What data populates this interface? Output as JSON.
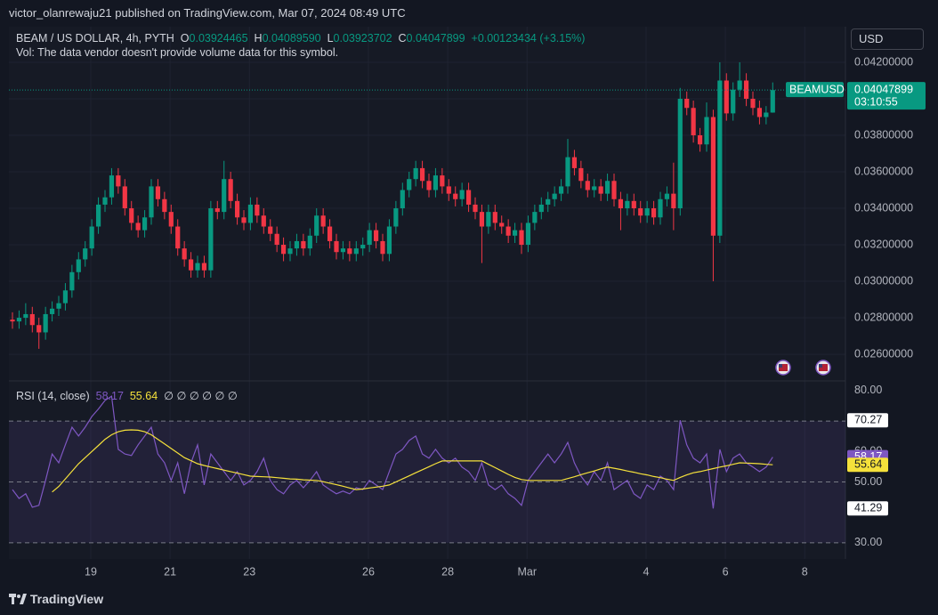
{
  "header": {
    "publisher": "victor_olanrewaju21 published on TradingView.com, Mar 07, 2024 08:49 UTC",
    "legend": {
      "symbol": "BEAM / US DOLLAR, 4h, PYTH",
      "o_key": "O",
      "o": "0.03924465",
      "h_key": "H",
      "h": "0.04089590",
      "l_key": "L",
      "l": "0.03923702",
      "c_key": "C",
      "c": "0.04047899",
      "change": "+0.00123434 (+3.15%)"
    },
    "vol": "Vol: The data vendor doesn't provide volume data for this symbol.",
    "currency": "USD"
  },
  "chart_data": [
    {
      "type": "candlestick",
      "symbol_label": "BEAMUSD",
      "countdown": "03:10:55",
      "up_color": "#089981",
      "down_color": "#f23645",
      "xlim": [
        -0.54,
        126.0
      ],
      "xticks": [
        {
          "value": 11.84,
          "label": "19"
        },
        {
          "value": 23.84,
          "label": "21"
        },
        {
          "value": 35.84,
          "label": "23"
        },
        {
          "value": 53.84,
          "label": "26"
        },
        {
          "value": 65.84,
          "label": "28"
        },
        {
          "value": 77.84,
          "label": "Mar"
        },
        {
          "value": 95.84,
          "label": "4"
        },
        {
          "value": 107.84,
          "label": "6"
        },
        {
          "value": 119.84,
          "label": "8"
        }
      ],
      "ylim": [
        0.02454,
        0.04395
      ],
      "yticks": [
        {
          "value": 0.026,
          "label": "0.02600000"
        },
        {
          "value": 0.028,
          "label": "0.02800000"
        },
        {
          "value": 0.03,
          "label": "0.03000000"
        },
        {
          "value": 0.032,
          "label": "0.03200000"
        },
        {
          "value": 0.034,
          "label": "0.03400000"
        },
        {
          "value": 0.036,
          "label": "0.03600000"
        },
        {
          "value": 0.038,
          "label": "0.03800000"
        },
        {
          "value": 0.04,
          "label": "0.04000000"
        },
        {
          "value": 0.042,
          "label": "0.04200000"
        }
      ],
      "grid": true,
      "open": [
        0.0279,
        0.0278,
        0.028,
        0.0282,
        0.0276,
        0.0272,
        0.0282,
        0.0285,
        0.0288,
        0.0295,
        0.0305,
        0.0312,
        0.0318,
        0.033,
        0.0342,
        0.0346,
        0.0358,
        0.0352,
        0.034,
        0.0332,
        0.0328,
        0.0335,
        0.0352,
        0.0345,
        0.0338,
        0.033,
        0.0318,
        0.0312,
        0.0306,
        0.031,
        0.0306,
        0.034,
        0.0338,
        0.0356,
        0.0344,
        0.0335,
        0.0332,
        0.0342,
        0.0336,
        0.033,
        0.0326,
        0.032,
        0.0315,
        0.0318,
        0.0322,
        0.0318,
        0.0325,
        0.0336,
        0.033,
        0.0322,
        0.0316,
        0.0318,
        0.0315,
        0.0318,
        0.032,
        0.0328,
        0.0322,
        0.0315,
        0.033,
        0.034,
        0.035,
        0.0356,
        0.0362,
        0.0355,
        0.035,
        0.0358,
        0.0352,
        0.0348,
        0.0345,
        0.035,
        0.0342,
        0.0338,
        0.033,
        0.0338,
        0.0332,
        0.033,
        0.0325,
        0.0328,
        0.032,
        0.0332,
        0.0338,
        0.0342,
        0.0345,
        0.0348,
        0.0352,
        0.0368,
        0.0362,
        0.0355,
        0.035,
        0.0352,
        0.0348,
        0.0355,
        0.0345,
        0.034,
        0.0344,
        0.034,
        0.0336,
        0.034,
        0.0335,
        0.0345,
        0.0348,
        0.034,
        0.04,
        0.0395,
        0.038,
        0.0375,
        0.039,
        0.0325,
        0.041,
        0.0392,
        0.0405,
        0.041,
        0.04,
        0.0395,
        0.039,
        0.03924465
      ],
      "high": [
        0.0283,
        0.0284,
        0.0288,
        0.0286,
        0.028,
        0.0286,
        0.0289,
        0.0292,
        0.0299,
        0.0309,
        0.0316,
        0.0322,
        0.0334,
        0.0346,
        0.035,
        0.0362,
        0.0362,
        0.0356,
        0.0344,
        0.0336,
        0.0339,
        0.0356,
        0.0356,
        0.0349,
        0.0342,
        0.0334,
        0.0322,
        0.0316,
        0.0314,
        0.0314,
        0.0344,
        0.0344,
        0.0366,
        0.036,
        0.0348,
        0.0339,
        0.0346,
        0.0346,
        0.034,
        0.0334,
        0.033,
        0.0324,
        0.0322,
        0.0326,
        0.0326,
        0.0329,
        0.034,
        0.034,
        0.0334,
        0.0326,
        0.0322,
        0.0322,
        0.0322,
        0.0324,
        0.0332,
        0.0332,
        0.0326,
        0.0334,
        0.0344,
        0.0354,
        0.036,
        0.0366,
        0.0366,
        0.0359,
        0.0362,
        0.0362,
        0.0356,
        0.0352,
        0.0354,
        0.0354,
        0.0346,
        0.0342,
        0.0342,
        0.0342,
        0.0336,
        0.0334,
        0.0332,
        0.0332,
        0.0336,
        0.0342,
        0.0346,
        0.0349,
        0.0352,
        0.0356,
        0.0378,
        0.0372,
        0.0366,
        0.0359,
        0.0356,
        0.0356,
        0.0359,
        0.0359,
        0.0349,
        0.0348,
        0.0348,
        0.0344,
        0.0344,
        0.0344,
        0.0349,
        0.0352,
        0.0365,
        0.0406,
        0.0404,
        0.0399,
        0.0384,
        0.0398,
        0.0394,
        0.042,
        0.0414,
        0.0409,
        0.042,
        0.0414,
        0.0404,
        0.0399,
        0.0396,
        0.0408959
      ],
      "low": [
        0.0274,
        0.0274,
        0.0276,
        0.0272,
        0.0263,
        0.0268,
        0.0278,
        0.0281,
        0.0284,
        0.0291,
        0.0301,
        0.0308,
        0.0314,
        0.0326,
        0.0338,
        0.0342,
        0.0348,
        0.0336,
        0.0328,
        0.0324,
        0.0324,
        0.0331,
        0.0341,
        0.0334,
        0.0326,
        0.0314,
        0.0308,
        0.0302,
        0.0302,
        0.0302,
        0.0302,
        0.0334,
        0.0334,
        0.034,
        0.0331,
        0.0328,
        0.0328,
        0.0332,
        0.0326,
        0.0322,
        0.0316,
        0.0311,
        0.0311,
        0.0314,
        0.0314,
        0.0314,
        0.0321,
        0.0326,
        0.0318,
        0.0312,
        0.0312,
        0.0311,
        0.0311,
        0.0314,
        0.0316,
        0.0318,
        0.0311,
        0.0311,
        0.0326,
        0.0336,
        0.0346,
        0.0352,
        0.0351,
        0.0346,
        0.0346,
        0.0348,
        0.0344,
        0.0341,
        0.0341,
        0.0338,
        0.0334,
        0.031,
        0.0326,
        0.0328,
        0.0326,
        0.0321,
        0.0321,
        0.0315,
        0.0316,
        0.0328,
        0.0334,
        0.0338,
        0.0341,
        0.0344,
        0.0348,
        0.0358,
        0.0351,
        0.0346,
        0.0346,
        0.0344,
        0.0344,
        0.0341,
        0.0328,
        0.0336,
        0.0336,
        0.0332,
        0.0332,
        0.0331,
        0.0331,
        0.0341,
        0.0328,
        0.0336,
        0.0391,
        0.0376,
        0.0371,
        0.0371,
        0.03,
        0.0321,
        0.0388,
        0.0388,
        0.0401,
        0.0396,
        0.0391,
        0.0386,
        0.0386,
        0.03923702
      ],
      "close": [
        0.0278,
        0.028,
        0.0282,
        0.0276,
        0.0272,
        0.0282,
        0.0285,
        0.0288,
        0.0295,
        0.0305,
        0.0312,
        0.0318,
        0.033,
        0.0342,
        0.0346,
        0.0358,
        0.0352,
        0.034,
        0.0332,
        0.0328,
        0.0335,
        0.0352,
        0.0345,
        0.0338,
        0.033,
        0.0318,
        0.0312,
        0.0306,
        0.031,
        0.0306,
        0.034,
        0.0338,
        0.0356,
        0.0344,
        0.0335,
        0.0332,
        0.0342,
        0.0336,
        0.033,
        0.0326,
        0.032,
        0.0315,
        0.0318,
        0.0322,
        0.0318,
        0.0325,
        0.0336,
        0.033,
        0.0322,
        0.0316,
        0.0318,
        0.0315,
        0.0318,
        0.032,
        0.0328,
        0.0322,
        0.0315,
        0.033,
        0.034,
        0.035,
        0.0356,
        0.0362,
        0.0355,
        0.035,
        0.0358,
        0.0352,
        0.0348,
        0.0345,
        0.035,
        0.0342,
        0.0338,
        0.033,
        0.0338,
        0.0332,
        0.033,
        0.0325,
        0.0328,
        0.032,
        0.0332,
        0.0338,
        0.0342,
        0.0345,
        0.0348,
        0.0352,
        0.0368,
        0.0362,
        0.0355,
        0.035,
        0.0352,
        0.0348,
        0.0355,
        0.0345,
        0.034,
        0.0344,
        0.034,
        0.0336,
        0.034,
        0.0335,
        0.0345,
        0.0348,
        0.034,
        0.04,
        0.0395,
        0.038,
        0.0375,
        0.039,
        0.0325,
        0.041,
        0.0392,
        0.0405,
        0.041,
        0.04,
        0.0395,
        0.039,
        0.03924465,
        0.04047899
      ]
    },
    {
      "type": "line",
      "title": "RSI (14, close)",
      "legend_extra": "∅ ∅ ∅ ∅ ∅ ∅",
      "ylim": [
        24.7,
        83.2
      ],
      "yticks": [
        {
          "value": 30,
          "label": "30.00"
        },
        {
          "value": 50,
          "label": "50.00"
        },
        {
          "value": 60,
          "label": "60.00"
        },
        {
          "value": 80,
          "label": "80.00"
        }
      ],
      "bands": [
        70,
        50,
        30
      ],
      "band_fill": "#7e57c2",
      "series": [
        {
          "color": "#7e57c2",
          "values": [
            47.5,
            44.6,
            46.1,
            41.7,
            42.3,
            50.5,
            59.2,
            56.3,
            62.2,
            68.0,
            65.1,
            68.0,
            71.5,
            74.0,
            76.8,
            78.2,
            60.7,
            59.2,
            58.7,
            62.2,
            65.1,
            68.0,
            59.2,
            56.3,
            50.5,
            56.3,
            46.1,
            56.3,
            62.2,
            49.0,
            59.2,
            56.3,
            53.4,
            50.5,
            53.4,
            49.0,
            50.5,
            53.4,
            57.8,
            50.5,
            47.5,
            46.1,
            49.0,
            50.5,
            48.1,
            50.5,
            53.4,
            49.0,
            47.5,
            46.1,
            47.0,
            46.1,
            48.1,
            47.5,
            50.5,
            49.0,
            47.5,
            53.4,
            59.2,
            60.7,
            63.6,
            65.1,
            59.2,
            57.8,
            60.7,
            57.8,
            56.3,
            57.8,
            54.9,
            53.4,
            50.5,
            56.3,
            49.0,
            47.5,
            49.0,
            46.1,
            44.6,
            42.3,
            50.5,
            53.4,
            56.3,
            59.2,
            56.3,
            59.2,
            63.0,
            56.3,
            51.9,
            49.0,
            53.4,
            50.5,
            56.3,
            47.5,
            49.0,
            50.5,
            46.1,
            44.6,
            49.0,
            47.5,
            51.9,
            50.5,
            47.5,
            70.27,
            62.2,
            57.8,
            56.3,
            59.2,
            41.29,
            60.7,
            53.4,
            57.8,
            59.2,
            56.3,
            54.9,
            53.4,
            54.9,
            58.17
          ]
        },
        {
          "color": "#f5e13b",
          "values": [
            null,
            null,
            null,
            null,
            null,
            null,
            46.7,
            48.5,
            51,
            53.5,
            56,
            58,
            60,
            62,
            64,
            65.5,
            66.5,
            67,
            67.1,
            67,
            66.5,
            65.5,
            64,
            62.5,
            61,
            59.5,
            58,
            57,
            56,
            55.4,
            54.9,
            54.4,
            53.9,
            53.4,
            52.9,
            52.4,
            51.9,
            51.8,
            51.7,
            51.6,
            51.4,
            51.2,
            51,
            50.9,
            50.7,
            50.6,
            50.5,
            50.1,
            49.6,
            49.1,
            48.6,
            48,
            47.5,
            47.7,
            48,
            48.3,
            48.6,
            49,
            50,
            51,
            52,
            53,
            54,
            55,
            56,
            56.9,
            56.9,
            56.9,
            56.9,
            56.9,
            56.9,
            56.9,
            55.8,
            54.7,
            53.6,
            52.5,
            51.5,
            50.8,
            50.5,
            50.5,
            50.5,
            50.5,
            50.5,
            50.5,
            51.1,
            51.7,
            52.4,
            53,
            53.6,
            54.3,
            54.9,
            54.5,
            54.1,
            53.6,
            53.2,
            52.7,
            52.3,
            51.8,
            51.4,
            50.9,
            50.5,
            51.5,
            52.3,
            53,
            53.4,
            53.9,
            54.4,
            54.9,
            55.3,
            55.8,
            56.3,
            56.2,
            56.1,
            56,
            55.8,
            55.64
          ]
        }
      ]
    }
  ],
  "footer": {
    "brand": "TradingView"
  }
}
